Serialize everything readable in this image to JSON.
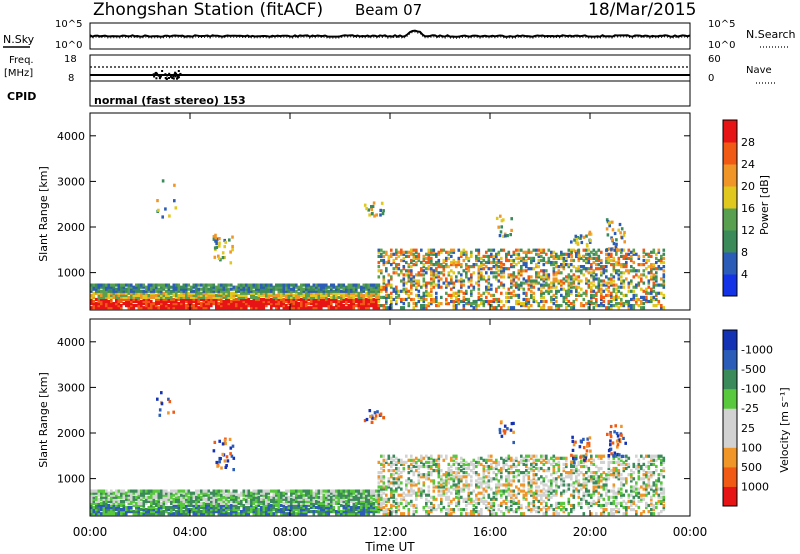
{
  "header": {
    "station": "Zhongshan Station (fitACF)",
    "beam": "Beam 07",
    "date": "18/Mar/2015"
  },
  "noise_panel": {
    "left_label": "N.Sky",
    "right_label": "N.Search",
    "left_ticks": [
      "10^5",
      "10^0"
    ],
    "right_ticks": [
      "10^5",
      "10^0"
    ]
  },
  "freq_panel": {
    "left_label": "Freq.",
    "left_unit": "[MHz]",
    "right_label": "Nave",
    "left_ticks": [
      "18",
      "8"
    ],
    "right_ticks": [
      "60",
      "0"
    ]
  },
  "cpid": {
    "label": "CPID",
    "value": "normal (fast stereo) 153"
  },
  "colors": {
    "power": [
      "#1432e6",
      "#2a5cb8",
      "#3a8a5a",
      "#58a050",
      "#e0c81e",
      "#f09628",
      "#f05a14",
      "#e61414"
    ],
    "velocity": [
      "#e61414",
      "#f05a14",
      "#f09628",
      "#d2d2d2",
      "#d2d2d2",
      "#58c83c",
      "#3a8a5a",
      "#2a5cb8",
      "#1432b4"
    ]
  },
  "chart_data": [
    {
      "type": "heatmap",
      "name": "power",
      "xlabel": "Time UT",
      "ylabel": "Slant Range [km]",
      "x_ticks": [
        "00:00",
        "04:00",
        "08:00",
        "12:00",
        "16:00",
        "20:00",
        "00:00"
      ],
      "y_ticks": [
        "1000",
        "2000",
        "3000",
        "4000"
      ],
      "ylim": [
        180,
        4500
      ],
      "xlim_hours": [
        0,
        24
      ],
      "colorbar_label": "Power [dB]",
      "colorbar_ticks": [
        "4",
        "8",
        "12",
        "16",
        "20",
        "24",
        "28"
      ],
      "colorbar_range": [
        0,
        32
      ]
    },
    {
      "type": "heatmap",
      "name": "velocity",
      "xlabel": "Time UT",
      "ylabel": "Slant Range [km]",
      "x_ticks": [
        "00:00",
        "04:00",
        "08:00",
        "12:00",
        "16:00",
        "20:00",
        "00:00"
      ],
      "y_ticks": [
        "1000",
        "2000",
        "3000",
        "4000"
      ],
      "ylim": [
        180,
        4500
      ],
      "xlim_hours": [
        0,
        24
      ],
      "colorbar_label": "Velocity [m s⁻¹]",
      "colorbar_ticks": [
        "-1000",
        "-500",
        "-100",
        "-25",
        "25",
        "100",
        "500",
        "1000"
      ]
    }
  ]
}
